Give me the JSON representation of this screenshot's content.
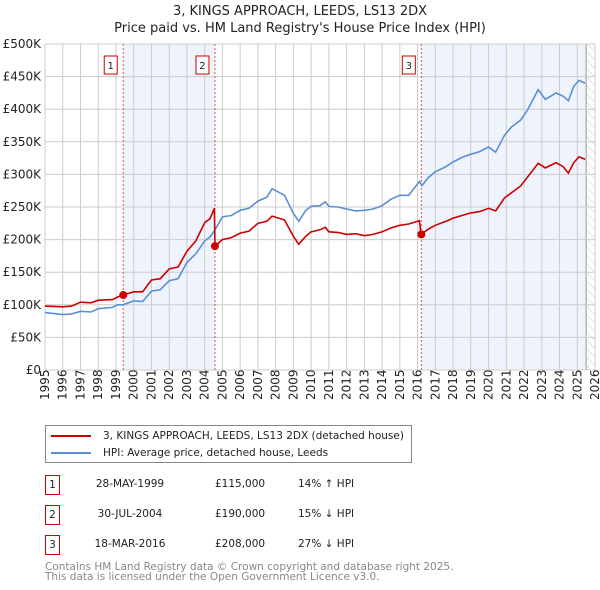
{
  "chart_data": {
    "type": "line",
    "title": "3, KINGS APPROACH, LEEDS, LS13 2DX",
    "subtitle": "Price paid vs. HM Land Registry's House Price Index (HPI)",
    "xlim": [
      1995,
      2026
    ],
    "ylim": [
      0,
      500000
    ],
    "x_ticks": [
      "1995",
      "1996",
      "1997",
      "1998",
      "1999",
      "2000",
      "2001",
      "2002",
      "2003",
      "2004",
      "2005",
      "2006",
      "2007",
      "2008",
      "2009",
      "2010",
      "2011",
      "2012",
      "2013",
      "2014",
      "2015",
      "2016",
      "2017",
      "2018",
      "2019",
      "2020",
      "2021",
      "2022",
      "2023",
      "2024",
      "2025",
      "2026"
    ],
    "y_ticks": [
      {
        "v": 0,
        "label": "£0"
      },
      {
        "v": 50000,
        "label": "£50K"
      },
      {
        "v": 100000,
        "label": "£100K"
      },
      {
        "v": 150000,
        "label": "£150K"
      },
      {
        "v": 200000,
        "label": "£200K"
      },
      {
        "v": 250000,
        "label": "£250K"
      },
      {
        "v": 300000,
        "label": "£300K"
      },
      {
        "v": 350000,
        "label": "£350K"
      },
      {
        "v": 400000,
        "label": "£400K"
      },
      {
        "v": 450000,
        "label": "£450K"
      },
      {
        "v": 500000,
        "label": "£500K"
      }
    ],
    "grid": true,
    "series": [
      {
        "name": "3, KINGS APPROACH, LEEDS, LS13 2DX (detached house)",
        "color": "#cc0000",
        "points": [
          [
            1995,
            98000
          ],
          [
            1996,
            97000
          ],
          [
            1996.5,
            98000
          ],
          [
            1997,
            104000
          ],
          [
            1997.6,
            103000
          ],
          [
            1998,
            107000
          ],
          [
            1998.8,
            108000
          ],
          [
            1999.1,
            112000
          ],
          [
            1999.4,
            115000
          ],
          [
            2000,
            120000
          ],
          [
            2000.5,
            120000
          ],
          [
            2001,
            138000
          ],
          [
            2001.5,
            140000
          ],
          [
            2002,
            155000
          ],
          [
            2002.5,
            158000
          ],
          [
            2003,
            182000
          ],
          [
            2003.5,
            198000
          ],
          [
            2004,
            226000
          ],
          [
            2004.3,
            232000
          ],
          [
            2004.55,
            248000
          ],
          [
            2004.58,
            190000
          ],
          [
            2005,
            200000
          ],
          [
            2005.5,
            203000
          ],
          [
            2006,
            210000
          ],
          [
            2006.5,
            213000
          ],
          [
            2007,
            225000
          ],
          [
            2007.5,
            228000
          ],
          [
            2007.8,
            236000
          ],
          [
            2008.5,
            230000
          ],
          [
            2009,
            205000
          ],
          [
            2009.3,
            193000
          ],
          [
            2009.7,
            205000
          ],
          [
            2010,
            212000
          ],
          [
            2010.5,
            215000
          ],
          [
            2010.8,
            219000
          ],
          [
            2011,
            212000
          ],
          [
            2011.5,
            211000
          ],
          [
            2012,
            208000
          ],
          [
            2012.5,
            209000
          ],
          [
            2013,
            206000
          ],
          [
            2013.5,
            208000
          ],
          [
            2014,
            212000
          ],
          [
            2014.5,
            218000
          ],
          [
            2015,
            222000
          ],
          [
            2015.5,
            224000
          ],
          [
            2016.1,
            229000
          ],
          [
            2016.2,
            208000
          ],
          [
            2016.6,
            216000
          ],
          [
            2017,
            222000
          ],
          [
            2017.6,
            228000
          ],
          [
            2018,
            233000
          ],
          [
            2018.5,
            237000
          ],
          [
            2019,
            241000
          ],
          [
            2019.5,
            243000
          ],
          [
            2020,
            248000
          ],
          [
            2020.4,
            244000
          ],
          [
            2020.9,
            264000
          ],
          [
            2021.3,
            272000
          ],
          [
            2021.8,
            282000
          ],
          [
            2022.2,
            296000
          ],
          [
            2022.8,
            317000
          ],
          [
            2023.2,
            310000
          ],
          [
            2023.8,
            318000
          ],
          [
            2024.2,
            312000
          ],
          [
            2024.5,
            302000
          ],
          [
            2024.8,
            318000
          ],
          [
            2025.1,
            327000
          ],
          [
            2025.45,
            323000
          ]
        ]
      },
      {
        "name": "HPI: Average price, detached house, Leeds",
        "color": "#5b8fd4",
        "points": [
          [
            1995,
            88000
          ],
          [
            1996,
            85000
          ],
          [
            1996.5,
            86000
          ],
          [
            1997,
            90000
          ],
          [
            1997.6,
            89000
          ],
          [
            1998,
            94000
          ],
          [
            1998.8,
            96000
          ],
          [
            1999.1,
            100000
          ],
          [
            1999.4,
            100000
          ],
          [
            2000,
            106000
          ],
          [
            2000.5,
            105000
          ],
          [
            2001,
            121000
          ],
          [
            2001.5,
            123000
          ],
          [
            2002,
            137000
          ],
          [
            2002.5,
            140000
          ],
          [
            2003,
            165000
          ],
          [
            2003.5,
            178000
          ],
          [
            2004,
            198000
          ],
          [
            2004.3,
            204000
          ],
          [
            2004.58,
            215000
          ],
          [
            2005,
            235000
          ],
          [
            2005.5,
            237000
          ],
          [
            2006,
            245000
          ],
          [
            2006.5,
            248000
          ],
          [
            2007,
            259000
          ],
          [
            2007.5,
            265000
          ],
          [
            2007.8,
            278000
          ],
          [
            2008.5,
            268000
          ],
          [
            2009,
            240000
          ],
          [
            2009.3,
            228000
          ],
          [
            2009.7,
            245000
          ],
          [
            2010,
            251000
          ],
          [
            2010.5,
            252000
          ],
          [
            2010.8,
            258000
          ],
          [
            2011,
            251000
          ],
          [
            2011.5,
            250000
          ],
          [
            2012,
            247000
          ],
          [
            2012.5,
            244000
          ],
          [
            2013,
            245000
          ],
          [
            2013.5,
            247000
          ],
          [
            2014,
            252000
          ],
          [
            2014.5,
            262000
          ],
          [
            2015,
            268000
          ],
          [
            2015.5,
            268000
          ],
          [
            2016.1,
            289000
          ],
          [
            2016.25,
            283000
          ],
          [
            2016.6,
            295000
          ],
          [
            2017,
            304000
          ],
          [
            2017.6,
            312000
          ],
          [
            2018,
            319000
          ],
          [
            2018.5,
            326000
          ],
          [
            2019,
            331000
          ],
          [
            2019.5,
            335000
          ],
          [
            2020,
            342000
          ],
          [
            2020.4,
            334000
          ],
          [
            2020.9,
            360000
          ],
          [
            2021.3,
            373000
          ],
          [
            2021.8,
            383000
          ],
          [
            2022.2,
            399000
          ],
          [
            2022.8,
            430000
          ],
          [
            2023.2,
            415000
          ],
          [
            2023.8,
            425000
          ],
          [
            2024.2,
            420000
          ],
          [
            2024.5,
            413000
          ],
          [
            2024.8,
            435000
          ],
          [
            2025.1,
            444000
          ],
          [
            2025.45,
            440000
          ]
        ]
      }
    ],
    "sales": [
      {
        "num": "1",
        "x": 1999.41,
        "value": 115000
      },
      {
        "num": "2",
        "x": 2004.58,
        "value": 190000
      },
      {
        "num": "3",
        "x": 2016.21,
        "value": 208000
      }
    ],
    "shaded_ranges": [
      [
        1999.41,
        2004.58
      ],
      [
        2016.21,
        2025.5
      ]
    ],
    "hatched_from": 2025.5
  },
  "legend": {
    "property": "3, KINGS APPROACH, LEEDS, LS13 2DX (detached house)",
    "hpi": "HPI: Average price, detached house, Leeds"
  },
  "transactions": [
    {
      "num": "1",
      "date": "28-MAY-1999",
      "price": "£115,000",
      "hpi": "14% ↑ HPI"
    },
    {
      "num": "2",
      "date": "30-JUL-2004",
      "price": "£190,000",
      "hpi": "15% ↓ HPI"
    },
    {
      "num": "3",
      "date": "18-MAR-2016",
      "price": "£208,000",
      "hpi": "27% ↓ HPI"
    }
  ],
  "footer": {
    "line1": "Contains HM Land Registry data © Crown copyright and database right 2025.",
    "line2": "This data is licensed under the Open Government Licence v3.0."
  },
  "colors": {
    "property": "#cc0000",
    "hpi": "#5b8fd4",
    "shade": "#eef3fc",
    "grid": "#cccccc"
  }
}
